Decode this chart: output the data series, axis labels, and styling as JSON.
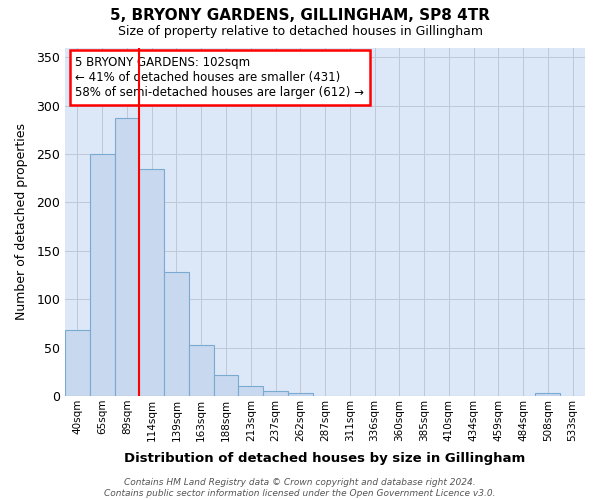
{
  "title": "5, BRYONY GARDENS, GILLINGHAM, SP8 4TR",
  "subtitle": "Size of property relative to detached houses in Gillingham",
  "xlabel": "Distribution of detached houses by size in Gillingham",
  "ylabel": "Number of detached properties",
  "bar_labels": [
    "40sqm",
    "65sqm",
    "89sqm",
    "114sqm",
    "139sqm",
    "163sqm",
    "188sqm",
    "213sqm",
    "237sqm",
    "262sqm",
    "287sqm",
    "311sqm",
    "336sqm",
    "360sqm",
    "385sqm",
    "410sqm",
    "434sqm",
    "459sqm",
    "484sqm",
    "508sqm",
    "533sqm"
  ],
  "bar_values": [
    68,
    250,
    287,
    235,
    128,
    53,
    22,
    10,
    5,
    3,
    0,
    0,
    0,
    0,
    0,
    0,
    0,
    0,
    0,
    3,
    0
  ],
  "bar_color": "#c8d8ee",
  "bar_edge_color": "#7aaad0",
  "grid_color": "#c0c8d8",
  "plot_bg_color": "#dce8f8",
  "fig_bg_color": "#ffffff",
  "annotation_text": "5 BRYONY GARDENS: 102sqm\n← 41% of detached houses are smaller (431)\n58% of semi-detached houses are larger (612) →",
  "annotation_box_color": "white",
  "annotation_box_edge_color": "red",
  "red_line_x": 2.5,
  "ylim": [
    0,
    360
  ],
  "yticks": [
    0,
    50,
    100,
    150,
    200,
    250,
    300,
    350
  ],
  "footer_text": "Contains HM Land Registry data © Crown copyright and database right 2024.\nContains public sector information licensed under the Open Government Licence v3.0."
}
